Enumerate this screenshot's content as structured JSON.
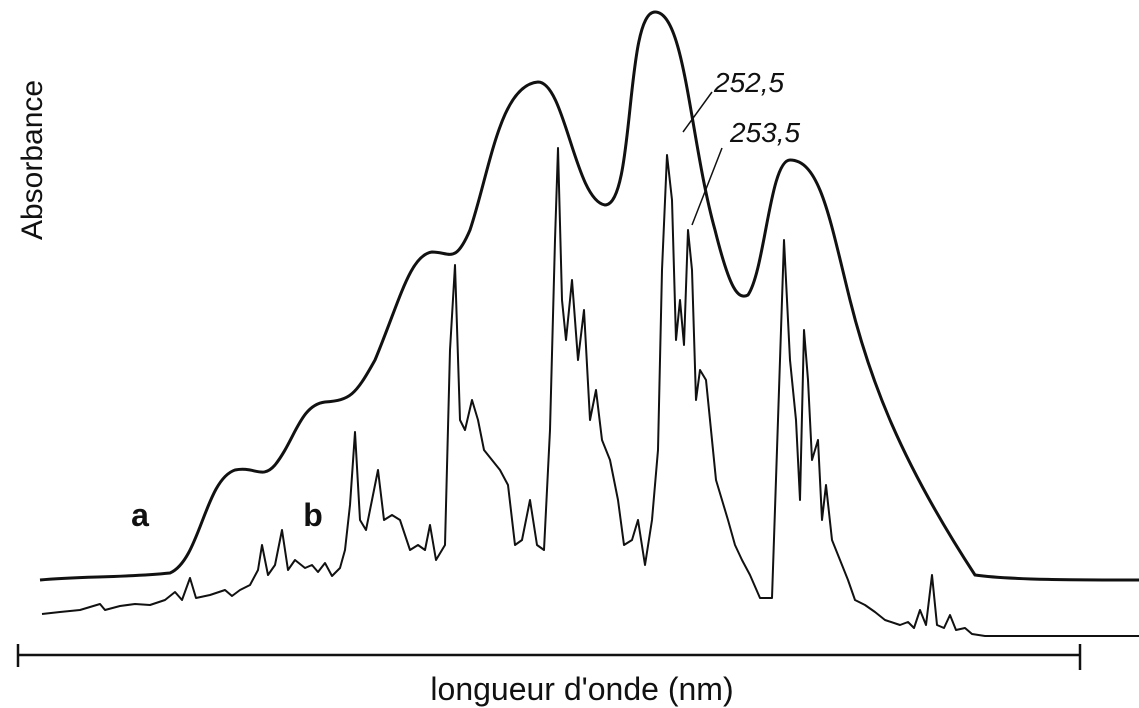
{
  "axis_labels": {
    "y": "Absorbance",
    "x": "longueur d'onde (nm)"
  },
  "curve_labels": [
    "a",
    "b"
  ],
  "annotations": [
    "252,5",
    "253,5"
  ]
}
